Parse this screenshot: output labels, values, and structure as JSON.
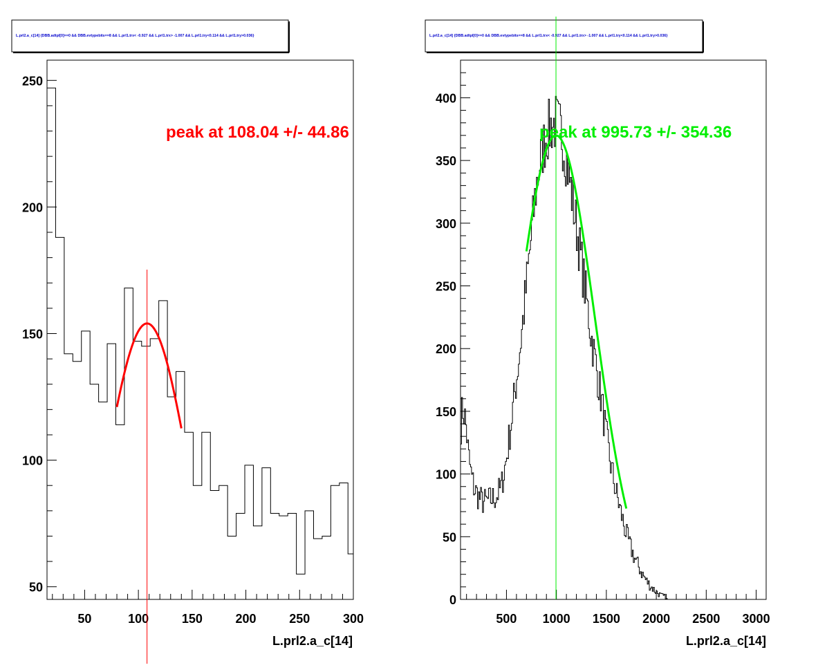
{
  "colors": {
    "left_fit": "#ff0000",
    "right_fit": "#00ee00",
    "histogram": "#000000",
    "cut_text": "#0000cc"
  },
  "chart_data": [
    {
      "type": "histogram",
      "title": "L.prl2.a_c[14] {DBB.adtpl[0]==0 && DBB.evtypebits==8 &&  L.prl1.trx< -0.927 && L.prl1.trx> -1.007 && L.prl1.try<0.114 && L.prl1.try>0.036}",
      "xlabel": "L.prl2.a_c[14]",
      "ylabel": "",
      "xlim": [
        15,
        300
      ],
      "ylim": [
        45,
        258
      ],
      "xticks": [
        50,
        100,
        150,
        200,
        250,
        300
      ],
      "yticks": [
        50,
        100,
        150,
        200,
        250
      ],
      "bin_edges": [
        15,
        23,
        31,
        39,
        47,
        55,
        63,
        71,
        79,
        87,
        95,
        103,
        111,
        119,
        127,
        135,
        143,
        151,
        159,
        167,
        175,
        183,
        191,
        199,
        207,
        215,
        223,
        231,
        239,
        247,
        255,
        263,
        271,
        279,
        287,
        295,
        303
      ],
      "counts": [
        247,
        188,
        142,
        139,
        151,
        130,
        123,
        146,
        114,
        168,
        147,
        145,
        148,
        163,
        125,
        135,
        111,
        90,
        111,
        88,
        90,
        70,
        79,
        98,
        74,
        97,
        79,
        78,
        79,
        55,
        80,
        69,
        70,
        90,
        91,
        63
      ],
      "fit": {
        "peak": 108.04,
        "sigma": 44.86,
        "height": 154,
        "range": [
          80,
          140
        ],
        "label": "peak at 108.04 +/- 44.86"
      }
    },
    {
      "type": "histogram",
      "title": "L.prl2.a_c[14] {DBB.adtpl[0]==0 && DBB.evtypebits==8 &&  L.prl1.trx< -0.927 && L.prl1.trx> -1.007 && L.prl1.try<0.114 && L.prl1.try>0.036}",
      "xlabel": "L.prl2.a_c[14]",
      "ylabel": "",
      "xlim": [
        40,
        3100
      ],
      "ylim": [
        0,
        430
      ],
      "xticks": [
        500,
        1000,
        1500,
        2000,
        2500,
        3000
      ],
      "yticks": [
        0,
        50,
        100,
        150,
        200,
        250,
        300,
        350,
        400
      ],
      "profile_x": [
        40,
        60,
        80,
        100,
        120,
        150,
        180,
        220,
        260,
        300,
        350,
        400,
        450,
        500,
        550,
        600,
        650,
        700,
        750,
        800,
        850,
        900,
        950,
        1000,
        1050,
        1100,
        1150,
        1200,
        1250,
        1300,
        1350,
        1400,
        1450,
        1500,
        1550,
        1600,
        1650,
        1700,
        1750,
        1800,
        1850,
        1900,
        1950,
        2000,
        2050,
        2100
      ],
      "profile_y": [
        135,
        152,
        148,
        135,
        115,
        98,
        88,
        82,
        78,
        78,
        80,
        82,
        90,
        112,
        142,
        175,
        210,
        250,
        290,
        330,
        355,
        370,
        378,
        380,
        372,
        352,
        325,
        298,
        270,
        240,
        210,
        185,
        160,
        130,
        105,
        85,
        68,
        52,
        40,
        30,
        22,
        15,
        10,
        6,
        3,
        2
      ],
      "bin_width": 10,
      "fit": {
        "peak": 995.73,
        "sigma": 354.36,
        "height": 370,
        "range": [
          700,
          1700
        ],
        "label": "peak at 995.73 +/- 354.36"
      }
    }
  ]
}
